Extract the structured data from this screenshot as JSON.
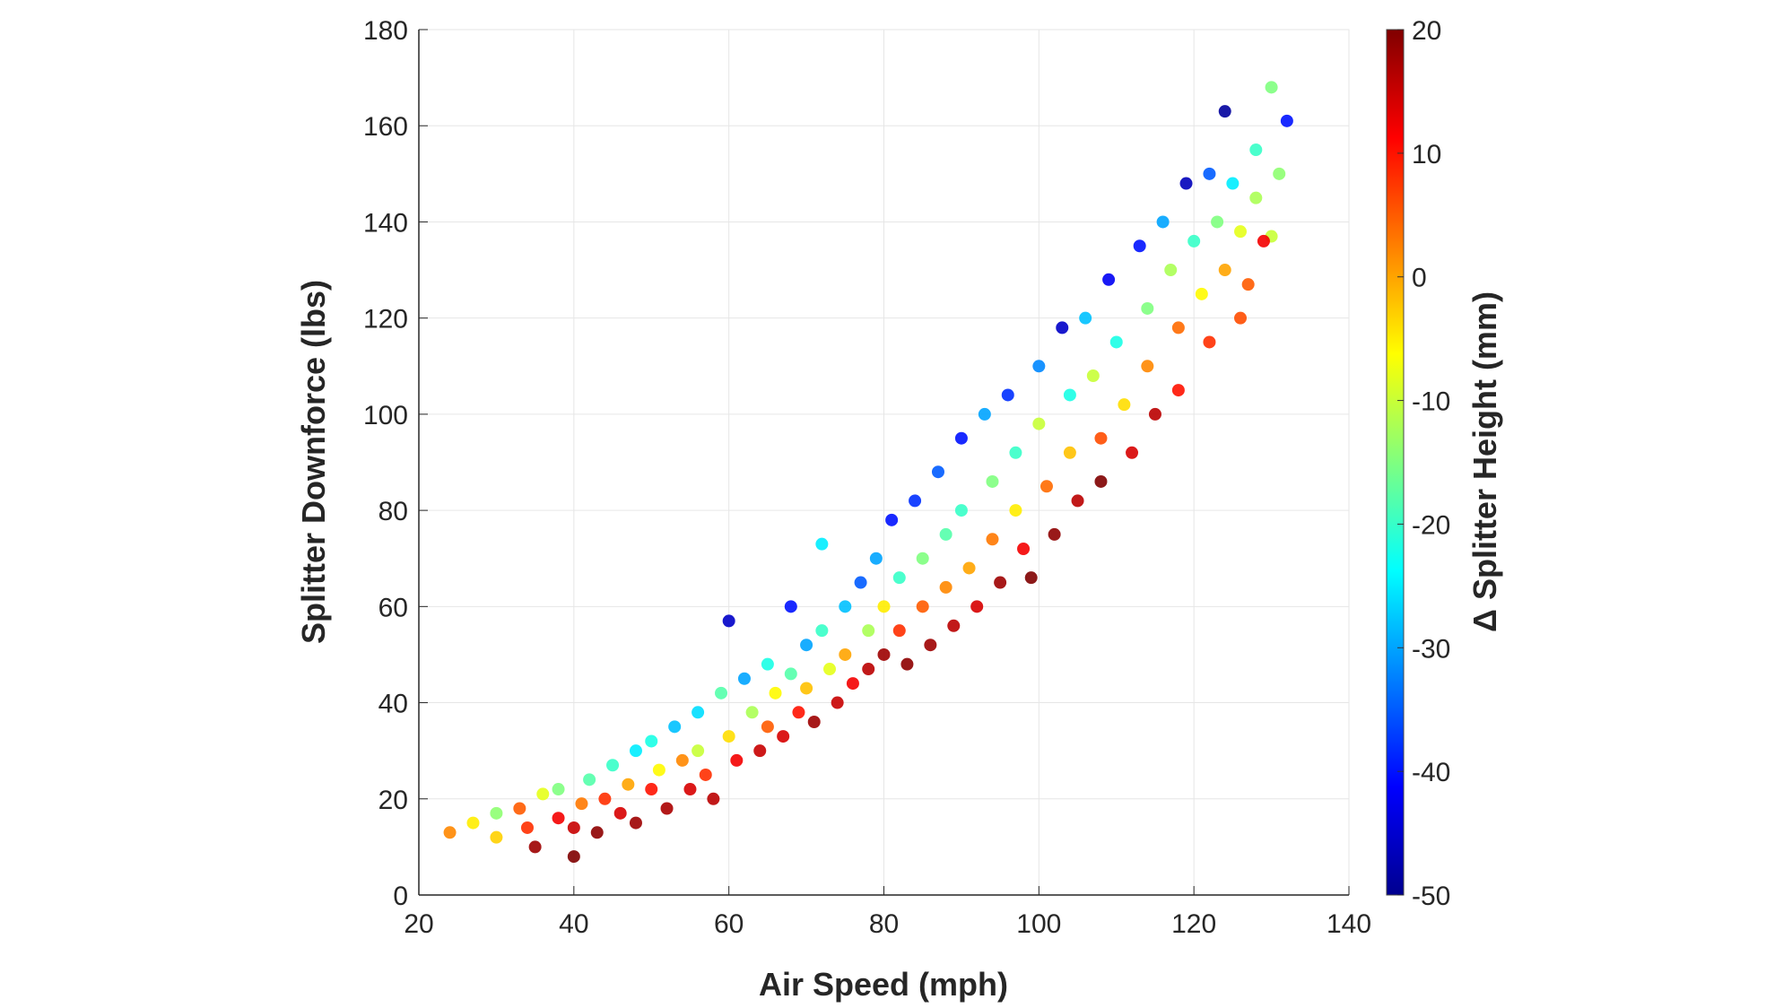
{
  "chart_data": {
    "type": "scatter",
    "title": "",
    "xlabel": "Air Speed (mph)",
    "ylabel": "Splitter Downforce (lbs)",
    "xlim": [
      20,
      140
    ],
    "ylim": [
      0,
      180
    ],
    "xticks": [
      "20",
      "40",
      "60",
      "80",
      "100",
      "120",
      "140"
    ],
    "yticks": [
      "0",
      "20",
      "40",
      "60",
      "80",
      "100",
      "120",
      "140",
      "160",
      "180"
    ],
    "grid": true,
    "colorbar": {
      "label": "Δ Splitter Height (mm)",
      "colormap": "jet",
      "clim": [
        -50,
        20
      ],
      "ticks": [
        "-50",
        "-40",
        "-30",
        "-20",
        "-10",
        "0",
        "10",
        "20"
      ]
    },
    "point_format": [
      "air_speed_mph",
      "downforce_lbs",
      "delta_splitter_height_mm"
    ],
    "points": [
      [
        24,
        13,
        2
      ],
      [
        27,
        15,
        -5
      ],
      [
        30,
        17,
        -14
      ],
      [
        30,
        12,
        -3
      ],
      [
        33,
        18,
        5
      ],
      [
        34,
        14,
        8
      ],
      [
        35,
        10,
        18
      ],
      [
        36,
        21,
        -8
      ],
      [
        38,
        16,
        12
      ],
      [
        38,
        22,
        -15
      ],
      [
        40,
        14,
        15
      ],
      [
        40,
        8,
        20
      ],
      [
        41,
        19,
        3
      ],
      [
        42,
        24,
        -18
      ],
      [
        43,
        13,
        19
      ],
      [
        44,
        20,
        8
      ],
      [
        45,
        27,
        -20
      ],
      [
        46,
        17,
        14
      ],
      [
        47,
        23,
        0
      ],
      [
        48,
        30,
        -25
      ],
      [
        48,
        15,
        18
      ],
      [
        50,
        22,
        10
      ],
      [
        50,
        32,
        -22
      ],
      [
        51,
        26,
        -6
      ],
      [
        52,
        18,
        17
      ],
      [
        53,
        35,
        -28
      ],
      [
        54,
        28,
        2
      ],
      [
        55,
        22,
        14
      ],
      [
        56,
        38,
        -26
      ],
      [
        56,
        30,
        -10
      ],
      [
        57,
        25,
        8
      ],
      [
        58,
        20,
        16
      ],
      [
        59,
        42,
        -18
      ],
      [
        60,
        33,
        -4
      ],
      [
        60,
        57,
        -45
      ],
      [
        61,
        28,
        12
      ],
      [
        62,
        45,
        -30
      ],
      [
        63,
        38,
        -12
      ],
      [
        64,
        30,
        15
      ],
      [
        65,
        48,
        -22
      ],
      [
        65,
        35,
        5
      ],
      [
        66,
        42,
        -6
      ],
      [
        67,
        33,
        14
      ],
      [
        68,
        60,
        -40
      ],
      [
        68,
        46,
        -18
      ],
      [
        69,
        38,
        10
      ],
      [
        70,
        52,
        -30
      ],
      [
        70,
        43,
        -2
      ],
      [
        71,
        36,
        18
      ],
      [
        72,
        73,
        -25
      ],
      [
        72,
        55,
        -20
      ],
      [
        73,
        47,
        -8
      ],
      [
        74,
        40,
        15
      ],
      [
        75,
        60,
        -28
      ],
      [
        75,
        50,
        0
      ],
      [
        76,
        44,
        12
      ],
      [
        77,
        65,
        -35
      ],
      [
        78,
        55,
        -12
      ],
      [
        78,
        47,
        16
      ],
      [
        79,
        70,
        -30
      ],
      [
        80,
        60,
        -5
      ],
      [
        80,
        50,
        18
      ],
      [
        81,
        78,
        -40
      ],
      [
        82,
        66,
        -20
      ],
      [
        82,
        55,
        8
      ],
      [
        83,
        48,
        19
      ],
      [
        84,
        82,
        -38
      ],
      [
        85,
        70,
        -15
      ],
      [
        85,
        60,
        5
      ],
      [
        86,
        52,
        18
      ],
      [
        87,
        88,
        -35
      ],
      [
        88,
        75,
        -18
      ],
      [
        88,
        64,
        2
      ],
      [
        89,
        56,
        16
      ],
      [
        90,
        95,
        -40
      ],
      [
        90,
        80,
        -20
      ],
      [
        91,
        68,
        0
      ],
      [
        92,
        60,
        14
      ],
      [
        93,
        100,
        -30
      ],
      [
        94,
        86,
        -15
      ],
      [
        94,
        74,
        3
      ],
      [
        95,
        65,
        18
      ],
      [
        96,
        104,
        -38
      ],
      [
        97,
        92,
        -20
      ],
      [
        97,
        80,
        -5
      ],
      [
        98,
        72,
        12
      ],
      [
        99,
        66,
        20
      ],
      [
        100,
        110,
        -32
      ],
      [
        100,
        98,
        -10
      ],
      [
        101,
        85,
        4
      ],
      [
        102,
        75,
        19
      ],
      [
        103,
        118,
        -45
      ],
      [
        104,
        104,
        -22
      ],
      [
        104,
        92,
        -2
      ],
      [
        105,
        82,
        16
      ],
      [
        106,
        120,
        -28
      ],
      [
        107,
        108,
        -10
      ],
      [
        108,
        95,
        6
      ],
      [
        108,
        86,
        20
      ],
      [
        109,
        128,
        -42
      ],
      [
        110,
        115,
        -22
      ],
      [
        111,
        102,
        -4
      ],
      [
        112,
        92,
        14
      ],
      [
        113,
        135,
        -40
      ],
      [
        114,
        122,
        -15
      ],
      [
        114,
        110,
        2
      ],
      [
        115,
        100,
        16
      ],
      [
        116,
        140,
        -30
      ],
      [
        117,
        130,
        -12
      ],
      [
        118,
        118,
        4
      ],
      [
        118,
        105,
        10
      ],
      [
        119,
        148,
        -46
      ],
      [
        120,
        136,
        -20
      ],
      [
        121,
        125,
        -6
      ],
      [
        122,
        115,
        8
      ],
      [
        122,
        150,
        -35
      ],
      [
        123,
        140,
        -15
      ],
      [
        124,
        163,
        -48
      ],
      [
        124,
        130,
        0
      ],
      [
        125,
        148,
        -25
      ],
      [
        126,
        138,
        -8
      ],
      [
        127,
        127,
        5
      ],
      [
        128,
        155,
        -20
      ],
      [
        128,
        145,
        -12
      ],
      [
        130,
        168,
        -15
      ],
      [
        131,
        150,
        -14
      ],
      [
        132,
        161,
        -40
      ],
      [
        130,
        137,
        -10
      ],
      [
        129,
        136,
        12
      ],
      [
        126,
        120,
        6
      ]
    ]
  }
}
